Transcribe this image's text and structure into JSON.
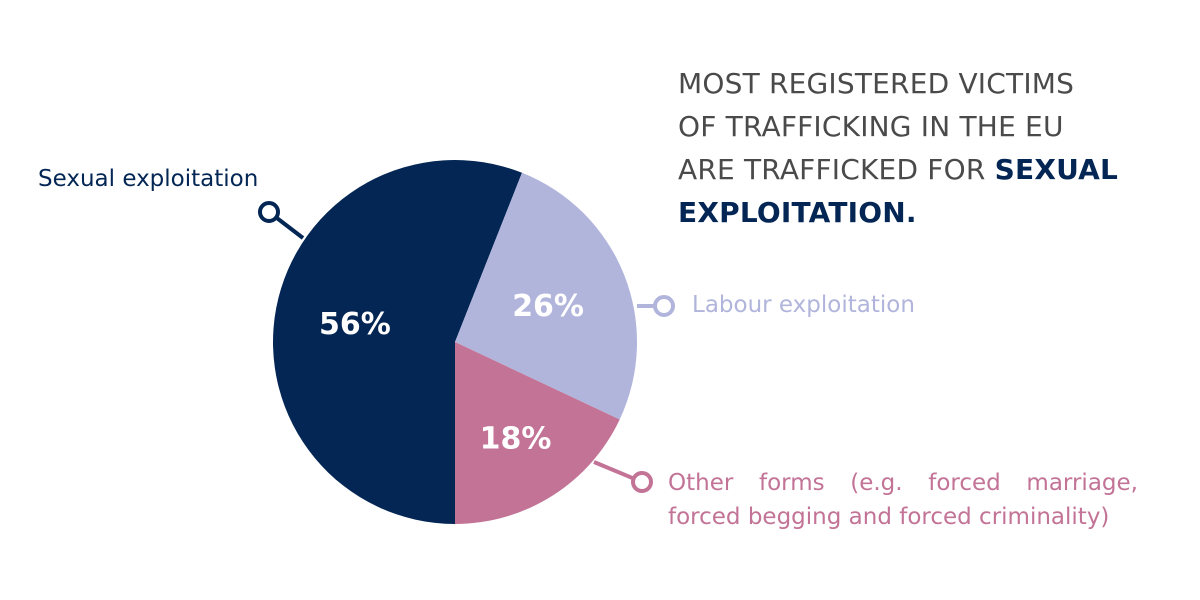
{
  "headline": {
    "line1": "MOST REGISTERED VICTIMS",
    "line2": "OF TRAFFICKING IN THE EU",
    "line3_plain": "ARE TRAFFICKED FOR",
    "line3_bold": "SEXUAL",
    "line4_bold": "EXPLOITATION."
  },
  "chart_data": {
    "type": "pie",
    "title": "",
    "slices": [
      {
        "label": "Sexual exploitation",
        "value": 56,
        "display": "56%",
        "color": "#032654"
      },
      {
        "label": "Labour exploitation",
        "value": 26,
        "display": "26%",
        "color": "#b1b5dc"
      },
      {
        "label": "Other forms (e.g. forced marriage, forced begging and forced criminality)",
        "value": 18,
        "display": "18%",
        "color": "#c27396"
      }
    ],
    "other_label_lines": [
      "Other forms (e.g. forced marriage,",
      "forced begging and forced criminality)"
    ],
    "other_label_words": [
      "Other",
      "forms",
      "(e.g.",
      "forced",
      "marriage,"
    ],
    "legend": "callouts"
  },
  "colors": {
    "text_dark": "#4a4a4a",
    "accent_navy": "#032654",
    "lavender": "#b1b5dc",
    "pink": "#c27396",
    "background": "#ffffff"
  }
}
